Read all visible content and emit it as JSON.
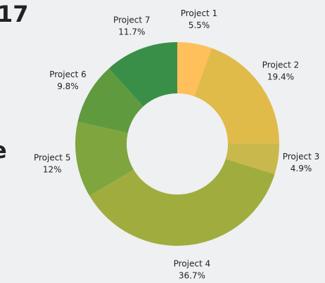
{
  "chart_data": {
    "type": "donut",
    "title": "17",
    "subtitle": "e",
    "categories": [
      "Project 1",
      "Project 2",
      "Project 3",
      "Project 4",
      "Project 5",
      "Project 6",
      "Project 7"
    ],
    "values": [
      5.5,
      19.4,
      4.9,
      36.7,
      12,
      9.8,
      11.7
    ],
    "value_labels": [
      "5.5%",
      "19.4%",
      "4.9%",
      "36.7%",
      "12%",
      "9.8%",
      "11.7%"
    ],
    "colors": [
      "#ffbf5a",
      "#e0bb4a",
      "#c9b84b",
      "#a0ad3e",
      "#7fa53f",
      "#5f9a3f",
      "#3a8f48"
    ]
  }
}
